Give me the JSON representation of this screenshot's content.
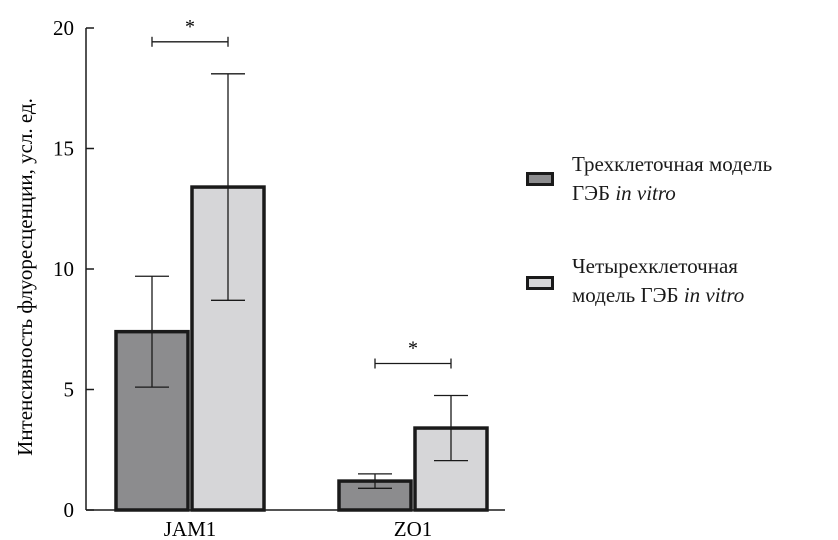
{
  "chart_data": {
    "type": "bar",
    "ylabel": "Интенсивность флуоресценции, усл. ед.",
    "ylim": [
      0,
      20
    ],
    "yticks": [
      "0",
      "5",
      "10",
      "15",
      "20"
    ],
    "categories": [
      "JAM1",
      "ZO1"
    ],
    "series": [
      {
        "name": "Трехклеточная модель ГЭБ in vitro",
        "name_line1": "Трехклеточная модель",
        "name_line2_plain": "ГЭБ ",
        "name_line2_italic": "in vitro",
        "color": "#8c8c8e",
        "values": [
          7.4,
          1.2
        ],
        "error": [
          2.3,
          0.3
        ]
      },
      {
        "name": "Четырехклеточная модель ГЭБ in vitro",
        "name_line1": "Четырехклеточная",
        "name_line2_plain": "модель ГЭБ ",
        "name_line2_italic": "in vitro",
        "color": "#d6d6d8",
        "values": [
          13.4,
          3.4
        ],
        "error": [
          4.7,
          1.35
        ]
      }
    ],
    "significance": [
      {
        "category": "JAM1",
        "label": "*"
      },
      {
        "category": "ZO1",
        "label": "*"
      }
    ],
    "legend_position": "right"
  }
}
